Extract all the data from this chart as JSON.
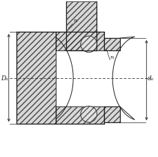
{
  "bg_color": "#ffffff",
  "line_color": "#1a1a1a",
  "hatch_color": "#555555",
  "label_Da": "Dₐ",
  "label_da": "dₐ",
  "label_ra_top": "rₐ",
  "label_ra_right": "rₐ",
  "figsize": [
    2.3,
    2.27
  ],
  "dpi": 100
}
